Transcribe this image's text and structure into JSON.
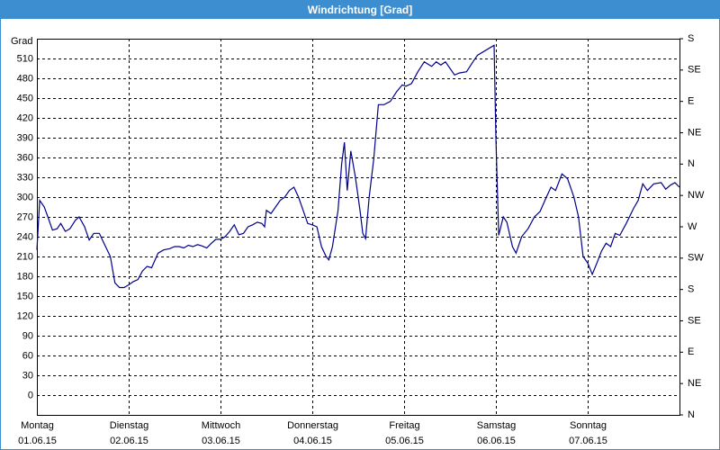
{
  "chart_data": {
    "type": "line",
    "title": "Windrichtung [Grad]",
    "y_label": "Grad",
    "x": [
      0,
      0.03,
      0.08,
      0.12,
      0.17,
      0.22,
      0.26,
      0.31,
      0.36,
      0.42,
      0.46,
      0.52,
      0.57,
      0.62,
      0.68,
      0.73,
      0.8,
      0.85,
      0.9,
      0.95,
      1.0,
      1.05,
      1.1,
      1.15,
      1.2,
      1.25,
      1.32,
      1.38,
      1.45,
      1.5,
      1.55,
      1.6,
      1.65,
      1.7,
      1.75,
      1.8,
      1.85,
      1.9,
      1.95,
      2.0,
      2.05,
      2.1,
      2.15,
      2.2,
      2.25,
      2.3,
      2.35,
      2.4,
      2.45,
      2.48,
      2.5,
      2.55,
      2.6,
      2.65,
      2.7,
      2.75,
      2.8,
      2.85,
      2.9,
      2.95,
      3.0,
      3.05,
      3.1,
      3.15,
      3.18,
      3.22,
      3.28,
      3.32,
      3.35,
      3.38,
      3.42,
      3.47,
      3.52,
      3.55,
      3.58,
      3.62,
      3.67,
      3.72,
      3.78,
      3.85,
      3.92,
      3.98,
      4.02,
      4.08,
      4.15,
      4.22,
      4.3,
      4.35,
      4.4,
      4.45,
      4.5,
      4.55,
      4.6,
      4.68,
      4.75,
      4.8,
      4.98,
      5.0,
      5.03,
      5.08,
      5.12,
      5.18,
      5.22,
      5.28,
      5.35,
      5.42,
      5.48,
      5.55,
      5.6,
      5.65,
      5.72,
      5.78,
      5.85,
      5.9,
      5.95,
      6.0,
      6.05,
      6.1,
      6.15,
      6.2,
      6.25,
      6.3,
      6.35,
      6.42,
      6.5,
      6.55,
      6.6,
      6.65,
      6.72,
      6.8,
      6.85,
      6.9,
      6.95,
      7.0
    ],
    "series": [
      {
        "name": "Windrichtung",
        "color": "#00008b",
        "values": [
          220,
          295,
          285,
          270,
          250,
          252,
          260,
          248,
          252,
          265,
          270,
          255,
          235,
          245,
          245,
          230,
          210,
          170,
          163,
          163,
          167,
          172,
          175,
          188,
          195,
          193,
          215,
          220,
          222,
          225,
          225,
          223,
          227,
          225,
          228,
          226,
          223,
          230,
          236,
          236,
          240,
          248,
          258,
          243,
          245,
          255,
          258,
          262,
          260,
          255,
          280,
          275,
          285,
          295,
          300,
          310,
          315,
          300,
          280,
          260,
          258,
          255,
          225,
          210,
          205,
          225,
          280,
          350,
          383,
          310,
          370,
          330,
          280,
          245,
          237,
          300,
          358,
          440,
          440,
          445,
          460,
          470,
          468,
          472,
          490,
          505,
          498,
          505,
          500,
          505,
          495,
          485,
          488,
          490,
          505,
          515,
          530,
          390,
          242,
          270,
          262,
          225,
          215,
          240,
          252,
          270,
          278,
          300,
          315,
          310,
          335,
          328,
          300,
          270,
          210,
          200,
          183,
          200,
          218,
          230,
          225,
          245,
          242,
          260,
          283,
          295,
          320,
          310,
          320,
          322,
          312,
          318,
          322,
          315
        ]
      }
    ],
    "xlim": [
      0,
      7
    ],
    "xticks": [
      {
        "value": 0,
        "label": "Montag",
        "date": "01.06.15"
      },
      {
        "value": 1,
        "label": "Dienstag",
        "date": "02.06.15"
      },
      {
        "value": 2,
        "label": "Mittwoch",
        "date": "03.06.15"
      },
      {
        "value": 3,
        "label": "Donnerstag",
        "date": "04.06.15"
      },
      {
        "value": 4,
        "label": "Freitag",
        "date": "05.06.15"
      },
      {
        "value": 5,
        "label": "Samstag",
        "date": "06.06.15"
      },
      {
        "value": 6,
        "label": "Sonntag",
        "date": "07.06.15"
      }
    ],
    "ylim": [
      -30,
      540
    ],
    "yticks": [
      0,
      30,
      60,
      90,
      120,
      150,
      180,
      210,
      240,
      270,
      300,
      330,
      360,
      390,
      420,
      450,
      480,
      510
    ],
    "y2lim": [
      0,
      540
    ],
    "y2ticks": [
      {
        "value": 0,
        "label": "N"
      },
      {
        "value": 45,
        "label": "NE"
      },
      {
        "value": 90,
        "label": "E"
      },
      {
        "value": 135,
        "label": "SE"
      },
      {
        "value": 180,
        "label": "S"
      },
      {
        "value": 225,
        "label": "SW"
      },
      {
        "value": 270,
        "label": "W"
      },
      {
        "value": 315,
        "label": "NW"
      },
      {
        "value": 360,
        "label": "N"
      },
      {
        "value": 405,
        "label": "NE"
      },
      {
        "value": 450,
        "label": "E"
      },
      {
        "value": 495,
        "label": "SE"
      },
      {
        "value": 540,
        "label": "S"
      }
    ],
    "grid": true
  }
}
